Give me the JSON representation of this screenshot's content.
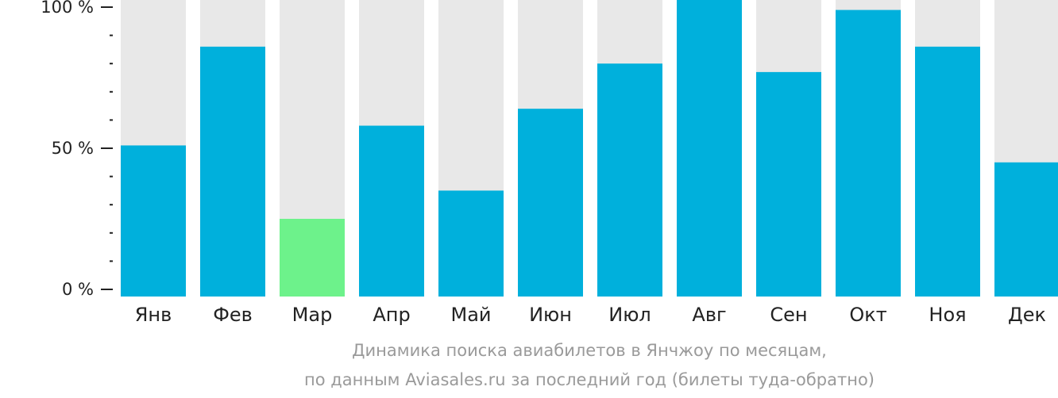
{
  "caption": {
    "line1": "Динамика поиска авиабилетов в Янчжоу по месяцам,",
    "line2": "по данным Aviasales.ru за последний год (билеты туда-обратно)"
  },
  "chart_data": {
    "type": "bar",
    "title": "",
    "xlabel": "",
    "ylabel": "",
    "ylim": [
      0,
      100
    ],
    "y_ticks": [
      {
        "value": 0,
        "label": "0 %"
      },
      {
        "value": 50,
        "label": "50 %"
      },
      {
        "value": 100,
        "label": "100 %"
      }
    ],
    "y_minor_step": 10,
    "categories": [
      "Янв",
      "Фев",
      "Мар",
      "Апр",
      "Май",
      "Июн",
      "Июл",
      "Авг",
      "Сен",
      "Окт",
      "Ноя",
      "Дек"
    ],
    "values": [
      51,
      86,
      25,
      58,
      35,
      64,
      80,
      105,
      77,
      99,
      86,
      45
    ],
    "highlight_index": 2,
    "colors": {
      "bar": "#00b0dc",
      "highlight": "#6df28b",
      "background_bar": "#e8e8e8",
      "axis": "#222222"
    }
  }
}
